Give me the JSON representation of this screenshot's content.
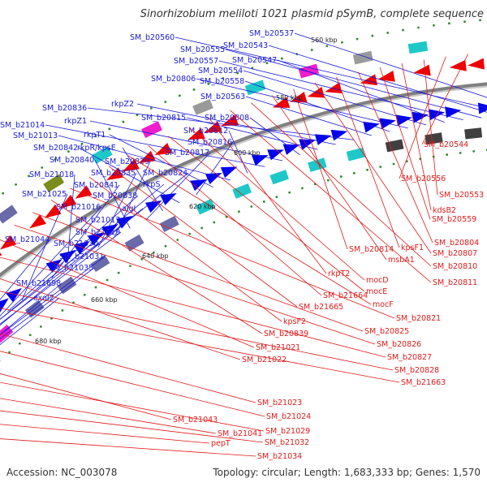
{
  "title": "Sinorhizobium meliloti 1021 plasmid pSymB, complete sequence",
  "footer": {
    "accession": "Accession: NC_003078",
    "stats": "Topology: circular; Length: 1,683,333 bp; Genes: 1,570"
  },
  "ruler_labels": [
    "560 kbp",
    "580 kbp",
    "600 kbp",
    "620 kbp",
    "640 kbp",
    "660 kbp",
    "680 kbp"
  ],
  "colors": {
    "forward_label": "#1a1ad6",
    "reverse_label": "#e01a1a",
    "forward_arrow": "#0000ee",
    "reverse_arrow": "#ee0000",
    "backbone": "#808080",
    "tick": "#2e8b2e",
    "feature_olive": "#7a8c1e",
    "feature_magenta": "#ee1ecc",
    "feature_slate": "#6a6aa8",
    "feature_teal": "#1ec8c8"
  },
  "forward_labels": [
    "SM_b20537",
    "SM_b20560",
    "SM_b20543",
    "SM_b20555",
    "SM_b20557",
    "SM_b20547",
    "SM_b20554",
    "SM_b20806",
    "SM_b20558",
    "SM_b20563",
    "SM_b20836",
    "rkpZ2",
    "SM_b20815",
    "SM_b20808",
    "rkpZ1",
    "SM_b21014",
    "SM_b20812",
    "SM_b21013",
    "rkpT1",
    "SM_b20816",
    "SM_b20842",
    "rkpR/kpsE",
    "SM_b20817",
    "SM_b20840",
    "SM_b20829",
    "SM_b20835",
    "SM_b20824",
    "SM_b21018",
    "SM_b20841",
    "rkpS",
    "SM_b21025",
    "SM_b20838",
    "SM_b21016",
    "algI",
    "SM_b21017",
    "SM_b21019",
    "SM_b21044",
    "SM_b21030",
    "SM_b21031",
    "SM_b21035",
    "SM_b21698",
    "exoI2"
  ],
  "reverse_labels": [
    "SM_b20544",
    "SM_b20556",
    "SM_b20553",
    "kdsB2",
    "SM_b20559",
    "SM_b20804",
    "kpsF1",
    "SM_b20807",
    "SM_b20814",
    "msbA1",
    "SM_b20810",
    "SM_b20811",
    "rkpT2",
    "mocD",
    "mocE",
    "SM_b21664",
    "mocF",
    "SM_b21665",
    "kpsF2",
    "SM_b20821",
    "SM_b20839",
    "SM_b20825",
    "SM_b20826",
    "SM_b21021",
    "SM_b20827",
    "SM_b21022",
    "SM_b20828",
    "SM_b21663",
    "SM_b21023",
    "SM_b21024",
    "SM_b21043",
    "SM_b21029",
    "SM_b21041",
    "SM_b21032",
    "pepT",
    "SM_b21034"
  ]
}
